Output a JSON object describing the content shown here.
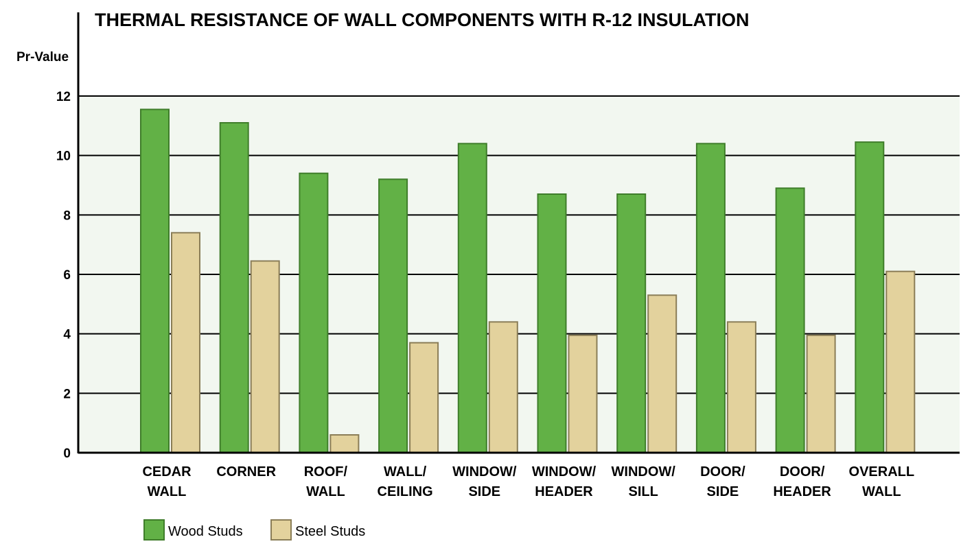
{
  "chart_data": {
    "type": "bar",
    "title": "THERMAL RESISTANCE OF WALL COMPONENTS WITH R-12 INSULATION",
    "ylabel": "Pr-Value",
    "xlabel": "",
    "ylim": [
      0,
      12
    ],
    "yticks": [
      0,
      2,
      4,
      6,
      8,
      10,
      12
    ],
    "grid": true,
    "legend_position": "bottom-left",
    "categories": [
      [
        "CEDAR",
        "WALL"
      ],
      [
        "CORNER"
      ],
      [
        "ROOF/",
        "WALL"
      ],
      [
        "WALL/",
        "CEILING"
      ],
      [
        "WINDOW/",
        "SIDE"
      ],
      [
        "WINDOW/",
        "HEADER"
      ],
      [
        "WINDOW/",
        "SILL"
      ],
      [
        "DOOR/",
        "SIDE"
      ],
      [
        "DOOR/",
        "HEADER"
      ],
      [
        "OVERALL",
        "WALL"
      ]
    ],
    "series": [
      {
        "name": "Wood Studs",
        "color": "#62b146",
        "stroke": "#3f7d2a",
        "values": [
          11.55,
          11.1,
          9.4,
          9.2,
          10.4,
          8.7,
          8.7,
          10.4,
          8.9,
          10.45
        ]
      },
      {
        "name": "Steel Studs",
        "color": "#e3d29d",
        "stroke": "#8a7d57",
        "values": [
          7.4,
          6.45,
          0.6,
          3.7,
          4.4,
          3.95,
          5.3,
          4.4,
          3.95,
          6.1
        ]
      }
    ],
    "plot_background": "#f2f7f0"
  }
}
